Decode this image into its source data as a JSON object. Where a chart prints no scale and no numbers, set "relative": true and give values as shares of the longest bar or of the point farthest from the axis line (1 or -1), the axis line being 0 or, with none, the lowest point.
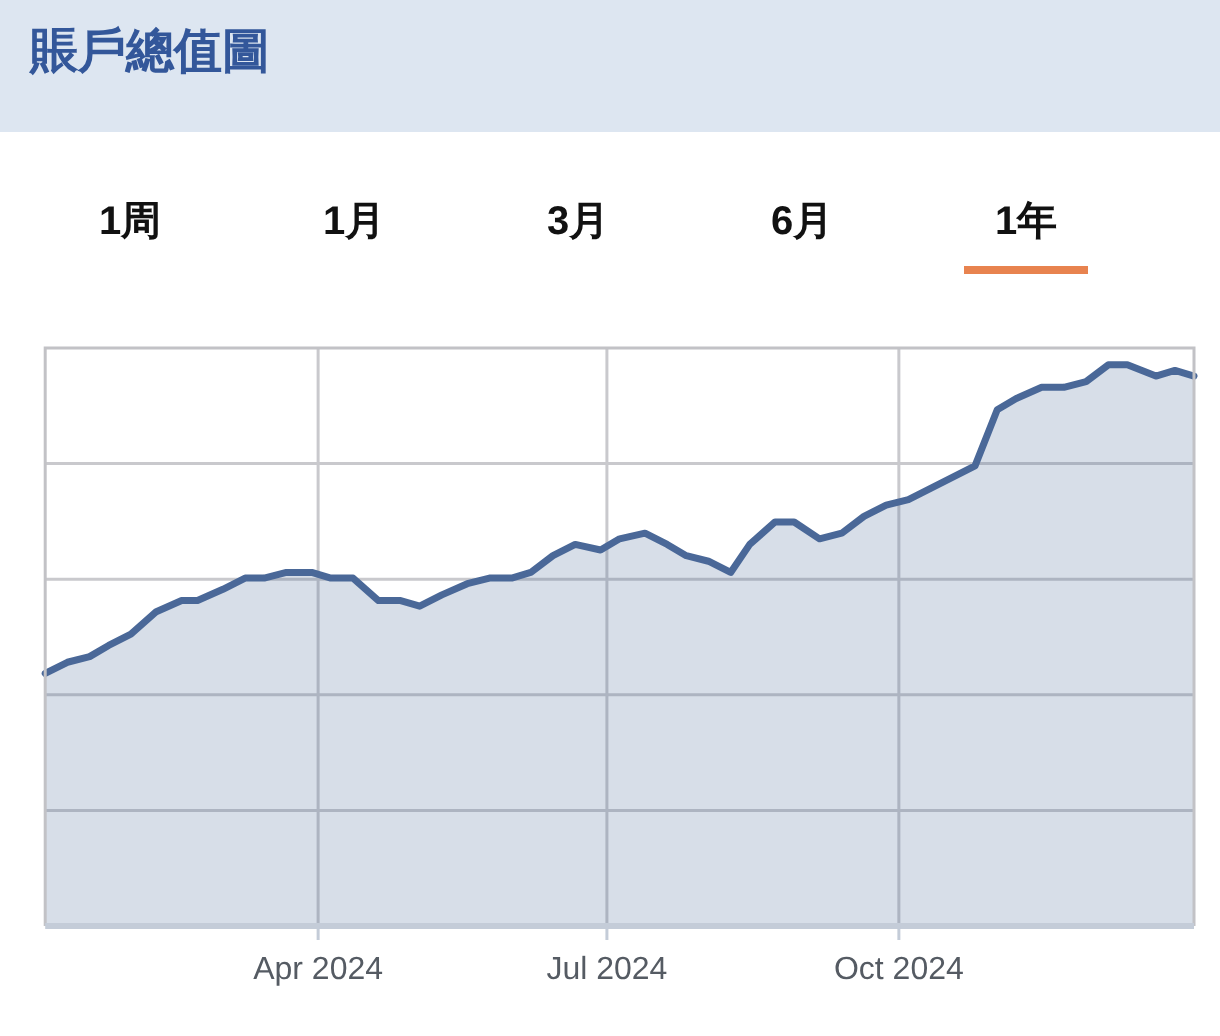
{
  "chart_data": {
    "type": "area",
    "title": "賬戶總值圖",
    "annotations": [
      "1周",
      "1月",
      "3月",
      "6月",
      "1年"
    ],
    "relative": true,
    "x": [
      "2024-01-06",
      "2024-01-13",
      "2024-01-20",
      "2024-01-26",
      "2024-02-02",
      "2024-02-10",
      "2024-02-18",
      "2024-02-23",
      "2024-03-02",
      "2024-03-09",
      "2024-03-15",
      "2024-03-22",
      "2024-03-30",
      "2024-04-05",
      "2024-04-12",
      "2024-04-20",
      "2024-04-27",
      "2024-05-03",
      "2024-05-10",
      "2024-05-18",
      "2024-05-25",
      "2024-06-01",
      "2024-06-07",
      "2024-06-14",
      "2024-06-21",
      "2024-06-29",
      "2024-07-05",
      "2024-07-13",
      "2024-07-20",
      "2024-07-26",
      "2024-08-02",
      "2024-08-09",
      "2024-08-15",
      "2024-08-23",
      "2024-08-29",
      "2024-09-06",
      "2024-09-13",
      "2024-09-20",
      "2024-09-27",
      "2024-10-04",
      "2024-10-11",
      "2024-10-18",
      "2024-10-25",
      "2024-11-01",
      "2024-11-07",
      "2024-11-15",
      "2024-11-22",
      "2024-11-29",
      "2024-12-06",
      "2024-12-12",
      "2024-12-21",
      "2024-12-27",
      "2025-01-02"
    ],
    "series": [
      {
        "color": "#4a6898",
        "values": [
          0.45,
          0.47,
          0.48,
          0.5,
          0.52,
          0.56,
          0.58,
          0.58,
          0.6,
          0.62,
          0.62,
          0.63,
          0.63,
          0.62,
          0.62,
          0.58,
          0.58,
          0.57,
          0.59,
          0.61,
          0.62,
          0.62,
          0.63,
          0.66,
          0.68,
          0.67,
          0.69,
          0.7,
          0.68,
          0.66,
          0.65,
          0.63,
          0.68,
          0.72,
          0.72,
          0.69,
          0.7,
          0.73,
          0.75,
          0.76,
          0.78,
          0.8,
          0.82,
          0.92,
          0.94,
          0.96,
          0.96,
          0.97,
          1.0,
          1.0,
          0.98,
          0.99,
          0.98
        ]
      }
    ],
    "xlim": [
      "2024-01-06",
      "2025-01-02"
    ],
    "xticks": [
      {
        "value": "2024-04-01",
        "label": "Apr 2024"
      },
      {
        "value": "2024-07-01",
        "label": "Jul 2024"
      },
      {
        "value": "2024-10-01",
        "label": "Oct 2024"
      }
    ],
    "grid": true,
    "tick_labels": "x"
  }
}
